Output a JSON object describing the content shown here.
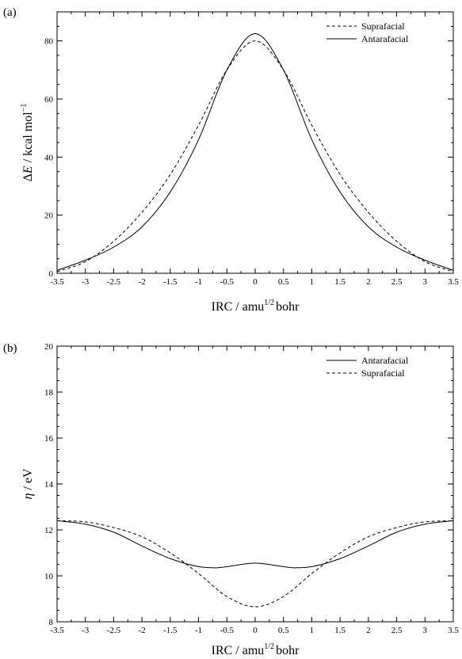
{
  "chart_data": [
    {
      "type": "line",
      "panel_label": "(a)",
      "xlabel": {
        "main": "IRC",
        "unit_pre": "amu",
        "unit_sup": "1/2",
        "unit_post": "bohr"
      },
      "ylabel": {
        "main": "ΔE",
        "unit_pre": "kcal mol",
        "unit_sup": "−1"
      },
      "xlim": [
        -3.5,
        3.5
      ],
      "ylim": [
        0,
        90
      ],
      "xticks": [
        -3.5,
        -3,
        -2.5,
        -2,
        -1.5,
        -1,
        -0.5,
        0,
        0.5,
        1,
        1.5,
        2,
        2.5,
        3,
        3.5
      ],
      "yticks": [
        0,
        20,
        40,
        60,
        80
      ],
      "grid": false,
      "legend_position": "top-right",
      "series": [
        {
          "name": "Suprafacial",
          "style": "dashed",
          "x": [
            -3.5,
            -3.0,
            -2.5,
            -2.0,
            -1.5,
            -1.0,
            -0.5,
            0.0,
            0.5,
            1.0,
            1.5,
            2.0,
            2.5,
            3.0,
            3.5
          ],
          "y": [
            0.5,
            4.0,
            11.0,
            21.0,
            34.0,
            51.0,
            70.0,
            80.0,
            70.0,
            51.0,
            34.0,
            21.0,
            11.0,
            4.0,
            0.5
          ]
        },
        {
          "name": "Antarafacial",
          "style": "solid",
          "x": [
            -3.5,
            -3.0,
            -2.5,
            -2.0,
            -1.5,
            -1.0,
            -0.5,
            0.0,
            0.5,
            1.0,
            1.5,
            2.0,
            2.5,
            3.0,
            3.5
          ],
          "y": [
            1.0,
            4.5,
            9.0,
            16.0,
            28.0,
            46.0,
            70.0,
            82.5,
            70.0,
            46.0,
            28.0,
            16.0,
            9.0,
            4.5,
            1.0
          ]
        }
      ]
    },
    {
      "type": "line",
      "panel_label": "(b)",
      "xlabel": {
        "main": "IRC",
        "unit_pre": "amu",
        "unit_sup": "1/2",
        "unit_post": "bohr"
      },
      "ylabel": {
        "main": "η",
        "unit_pre": "eV",
        "unit_sup": ""
      },
      "xlim": [
        -3.5,
        3.5
      ],
      "ylim": [
        8,
        20
      ],
      "xticks": [
        -3.5,
        -3,
        -2.5,
        -2,
        -1.5,
        -1,
        -0.5,
        0,
        0.5,
        1,
        1.5,
        2,
        2.5,
        3,
        3.5
      ],
      "yticks": [
        8,
        10,
        12,
        14,
        16,
        18,
        20
      ],
      "grid": false,
      "legend_position": "top-right",
      "series": [
        {
          "name": "Antarafacial",
          "style": "solid",
          "x": [
            -3.5,
            -3.0,
            -2.5,
            -2.0,
            -1.5,
            -1.0,
            -0.7,
            -0.5,
            0.0,
            0.5,
            0.7,
            1.0,
            1.5,
            2.0,
            2.5,
            3.0,
            3.5
          ],
          "y": [
            12.4,
            12.25,
            11.9,
            11.3,
            10.75,
            10.4,
            10.35,
            10.4,
            10.55,
            10.4,
            10.35,
            10.4,
            10.75,
            11.3,
            11.9,
            12.25,
            12.4
          ]
        },
        {
          "name": "Suprafacial",
          "style": "dashed",
          "x": [
            -3.5,
            -3.0,
            -2.5,
            -2.0,
            -1.5,
            -1.0,
            -0.5,
            0.0,
            0.5,
            1.0,
            1.5,
            2.0,
            2.5,
            3.0,
            3.5
          ],
          "y": [
            12.4,
            12.35,
            12.1,
            11.7,
            11.0,
            10.1,
            9.1,
            8.65,
            9.1,
            10.1,
            11.0,
            11.7,
            12.1,
            12.35,
            12.4
          ]
        }
      ]
    }
  ]
}
